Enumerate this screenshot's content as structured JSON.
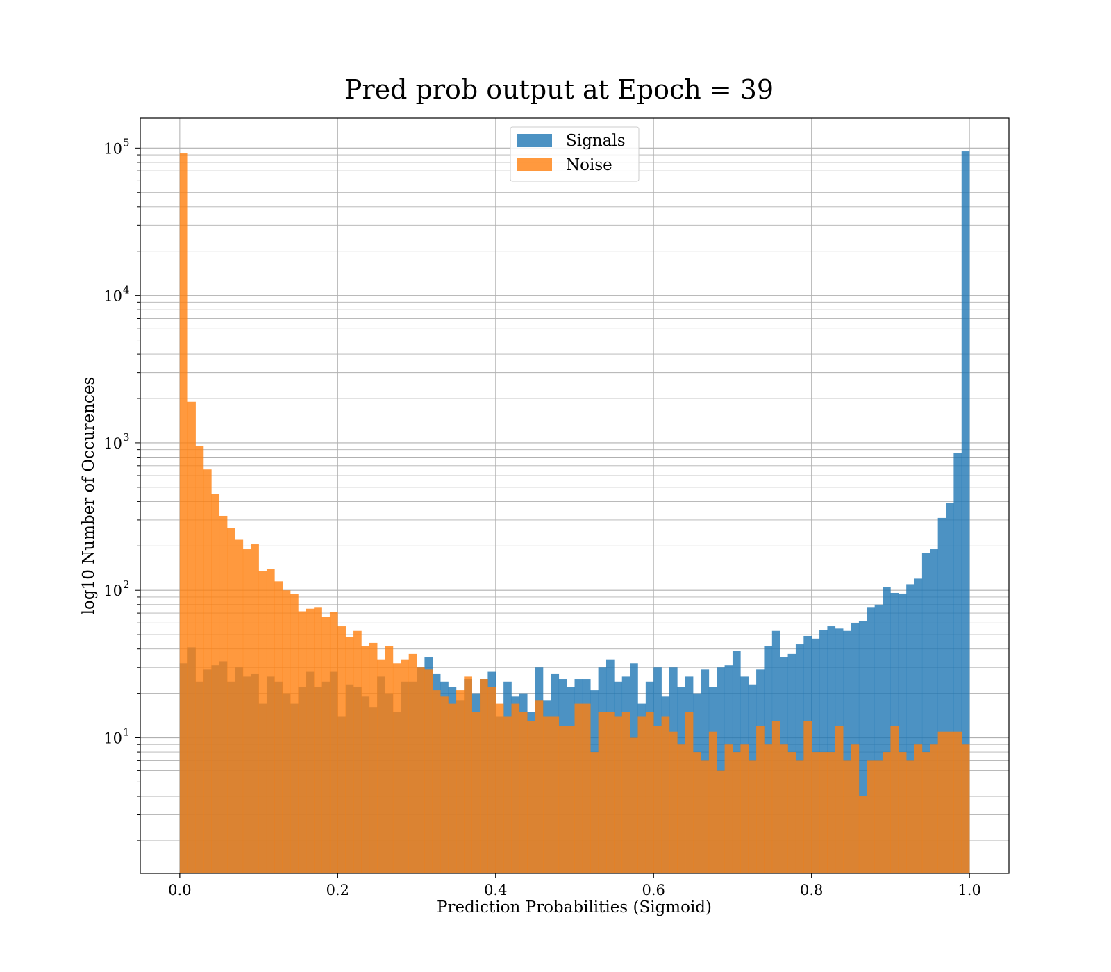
{
  "chart_data": {
    "type": "bar",
    "title": "Pred prob output at Epoch = 39",
    "xlabel": "Prediction Probabilities (Sigmoid)",
    "ylabel": "log10 Number of Occurences",
    "xlim": [
      -0.05,
      1.05
    ],
    "ylim": [
      1.2,
      160000
    ],
    "y_scale": "log",
    "grid": true,
    "legend_position": "top-center",
    "x_ticks": [
      "0.0",
      "0.2",
      "0.4",
      "0.6",
      "0.8",
      "1.0"
    ],
    "y_ticks": [
      {
        "base": "10",
        "exp": "1",
        "value": 10
      },
      {
        "base": "10",
        "exp": "2",
        "value": 100
      },
      {
        "base": "10",
        "exp": "3",
        "value": 1000
      },
      {
        "base": "10",
        "exp": "4",
        "value": 10000
      },
      {
        "base": "10",
        "exp": "5",
        "value": 100000
      }
    ],
    "bins": {
      "start": 0.0,
      "end": 1.0,
      "count": 100
    },
    "series": [
      {
        "name": "Signals",
        "color": "#1f77b4",
        "values": [
          32,
          41,
          24,
          29,
          31,
          33,
          24,
          30,
          26,
          27,
          17,
          26,
          24,
          20,
          17,
          22,
          28,
          22,
          24,
          28,
          14,
          23,
          22,
          19,
          16,
          26,
          20,
          15,
          24,
          24,
          30,
          35,
          27,
          24,
          22,
          18,
          25,
          20,
          25,
          28,
          14,
          24,
          19,
          20,
          15,
          30,
          18,
          27,
          25,
          22,
          25,
          25,
          21,
          30,
          34,
          24,
          26,
          32,
          17,
          24,
          30,
          19,
          30,
          22,
          26,
          20,
          29,
          22,
          30,
          31,
          39,
          26,
          23,
          29,
          42,
          53,
          35,
          37,
          43,
          49,
          47,
          54,
          57,
          55,
          53,
          60,
          62,
          77,
          80,
          105,
          96,
          95,
          110,
          120,
          180,
          190,
          310,
          390,
          850,
          95000
        ]
      },
      {
        "name": "Noise",
        "color": "#ff7f0e",
        "values": [
          92000,
          1900,
          950,
          660,
          450,
          320,
          265,
          220,
          190,
          205,
          135,
          140,
          115,
          100,
          94,
          72,
          75,
          77,
          66,
          71,
          57,
          48,
          53,
          42,
          44,
          34,
          42,
          32,
          34,
          37,
          30,
          29,
          21,
          19,
          17,
          21,
          26,
          15,
          25,
          22,
          17,
          14,
          17,
          15,
          13,
          18,
          14,
          14,
          12,
          12,
          17,
          17,
          8,
          15,
          15,
          14,
          15,
          10,
          14,
          15,
          12,
          14,
          11,
          9,
          15,
          8,
          7,
          11,
          6,
          9,
          8,
          9,
          7,
          12,
          9,
          13,
          9,
          8,
          7,
          13,
          8,
          8,
          8,
          12,
          7,
          9,
          4,
          7,
          7,
          8,
          12,
          8,
          7,
          9,
          8,
          9,
          11,
          11,
          11,
          9
        ]
      }
    ]
  }
}
